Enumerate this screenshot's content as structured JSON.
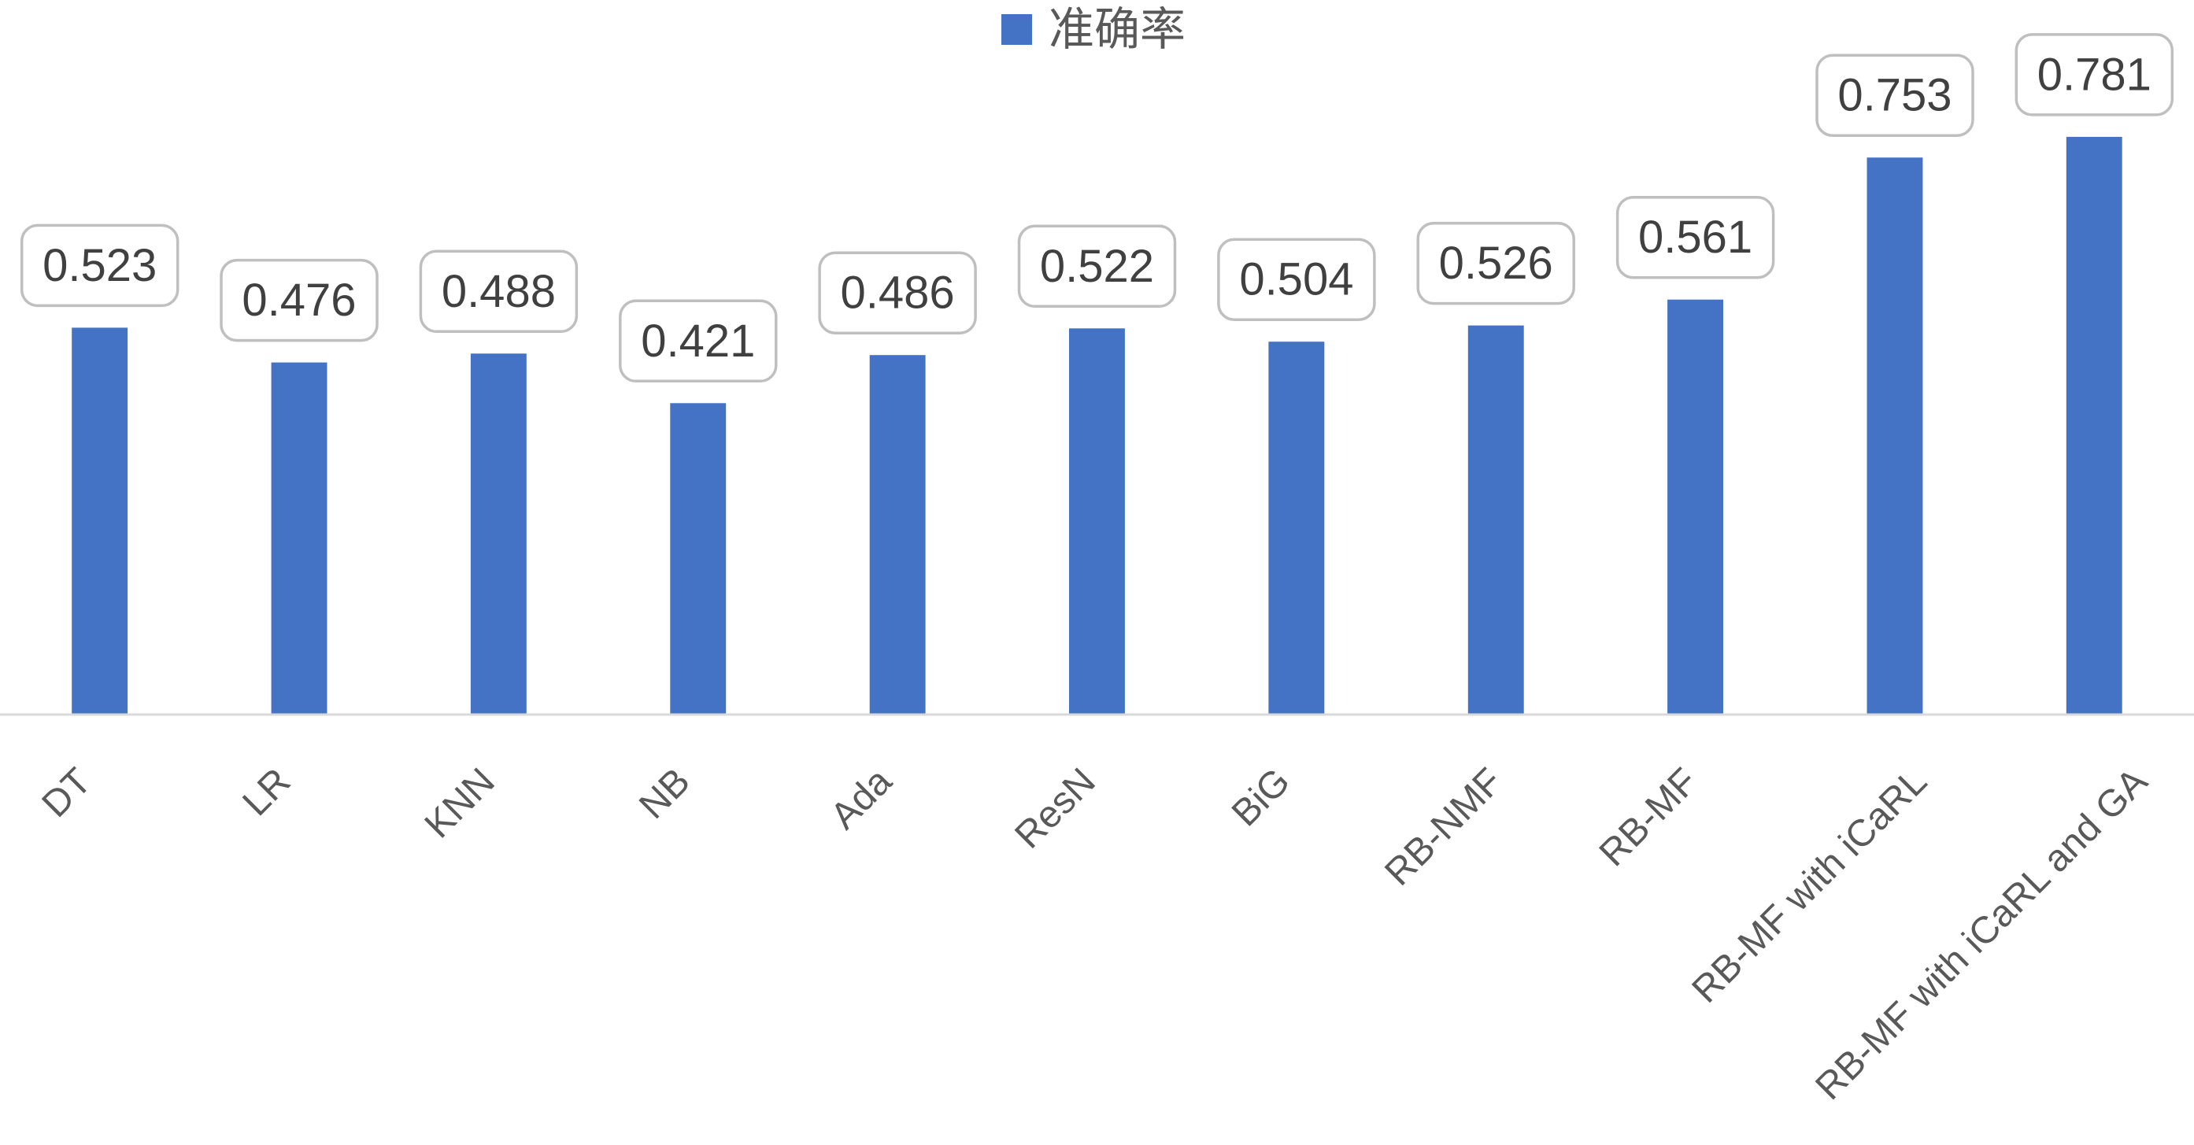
{
  "chart_data": {
    "type": "bar",
    "categories": [
      "DT",
      "LR",
      "KNN",
      "NB",
      "Ada",
      "ResN",
      "BiG",
      "RB-NMF",
      "RB-MF",
      "RB-MF with iCaRL",
      "RB-MF with iCaRL and GA"
    ],
    "series": [
      {
        "name": "准确率",
        "color": "#4472C4",
        "values": [
          0.523,
          0.476,
          0.488,
          0.421,
          0.486,
          0.522,
          0.504,
          0.526,
          0.561,
          0.753,
          0.781
        ]
      }
    ],
    "data_labels": true,
    "ylim": [
      0,
      0.9
    ],
    "grid": false,
    "legend": "top"
  }
}
